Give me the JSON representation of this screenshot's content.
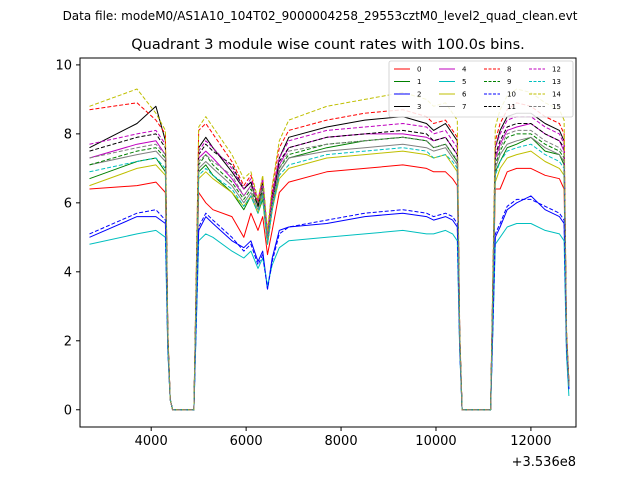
{
  "header": {
    "suptitle": "Data file: modeM0/AS1A10_104T02_9000004258_29553cztM0_level2_quad_clean.evt"
  },
  "chart_data": {
    "type": "line",
    "title": "Quadrant 3 module wise count rates with 100.0s bins.",
    "xlabel": "",
    "ylabel": "",
    "offset_label": "+3.536e8",
    "xlim": [
      2500,
      12950
    ],
    "ylim": [
      -0.5,
      10.2
    ],
    "xticks": [
      4000,
      6000,
      8000,
      10000,
      12000
    ],
    "yticks": [
      0,
      2,
      4,
      6,
      8,
      10
    ],
    "legend_position": "top-right",
    "x": [
      2700,
      3700,
      4100,
      4300,
      4350,
      4400,
      4450,
      4850,
      4900,
      5000,
      5150,
      5300,
      5700,
      5950,
      6100,
      6250,
      6350,
      6450,
      6550,
      6700,
      6900,
      7700,
      8500,
      9300,
      9800,
      9950,
      10200,
      10350,
      10450,
      10500,
      10550,
      11100,
      11150,
      11250,
      11350,
      11500,
      11700,
      12000,
      12300,
      12600,
      12700,
      12750,
      12800
    ],
    "series": [
      {
        "name": "0",
        "color": "#ff0000",
        "dash": "solid",
        "values": [
          6.4,
          6.5,
          6.6,
          6.3,
          2.0,
          0.3,
          0.0,
          0.0,
          0.0,
          6.3,
          6.0,
          5.8,
          5.6,
          5.0,
          5.7,
          5.2,
          5.6,
          4.5,
          5.2,
          6.3,
          6.6,
          6.9,
          7.0,
          7.1,
          7.0,
          6.9,
          6.9,
          6.7,
          6.5,
          2.0,
          0.0,
          0.0,
          0.0,
          6.4,
          6.4,
          6.9,
          7.0,
          7.0,
          6.8,
          6.7,
          6.4,
          2.0,
          0.7
        ]
      },
      {
        "name": "1",
        "color": "#008000",
        "dash": "solid",
        "values": [
          6.7,
          7.2,
          7.3,
          6.9,
          2.0,
          0.3,
          0.0,
          0.0,
          0.0,
          6.9,
          7.1,
          6.8,
          6.3,
          5.8,
          6.2,
          5.7,
          6.1,
          4.8,
          5.8,
          6.9,
          7.3,
          7.6,
          7.8,
          7.9,
          7.8,
          7.6,
          7.7,
          7.4,
          7.2,
          2.0,
          0.0,
          0.0,
          0.0,
          6.9,
          7.2,
          7.6,
          7.7,
          7.9,
          7.5,
          7.4,
          7.1,
          2.0,
          0.7
        ]
      },
      {
        "name": "2",
        "color": "#0000ff",
        "dash": "solid",
        "values": [
          5.0,
          5.6,
          5.6,
          5.4,
          1.8,
          0.3,
          0.0,
          0.0,
          0.0,
          5.2,
          5.6,
          5.4,
          4.9,
          4.7,
          4.9,
          4.3,
          4.6,
          3.5,
          4.4,
          5.2,
          5.3,
          5.4,
          5.6,
          5.7,
          5.6,
          5.5,
          5.6,
          5.5,
          5.3,
          1.8,
          0.0,
          0.0,
          0.0,
          5.0,
          5.3,
          5.8,
          6.0,
          6.2,
          5.8,
          5.6,
          5.4,
          1.8,
          0.6
        ]
      },
      {
        "name": "3",
        "color": "#000000",
        "dash": "solid",
        "values": [
          7.6,
          8.3,
          8.8,
          7.8,
          2.2,
          0.3,
          0.0,
          0.0,
          0.0,
          7.6,
          7.9,
          7.6,
          6.9,
          6.4,
          6.6,
          5.9,
          6.6,
          5.0,
          6.2,
          7.3,
          7.9,
          8.2,
          8.4,
          8.5,
          8.3,
          8.1,
          8.3,
          8.0,
          7.8,
          2.2,
          0.0,
          0.0,
          0.0,
          7.6,
          8.1,
          8.5,
          8.6,
          8.6,
          8.3,
          8.1,
          7.8,
          2.2,
          0.8
        ]
      },
      {
        "name": "4",
        "color": "#bf00bf",
        "dash": "solid",
        "values": [
          7.3,
          7.7,
          7.8,
          7.4,
          2.1,
          0.3,
          0.0,
          0.0,
          0.0,
          7.3,
          7.5,
          7.3,
          6.7,
          6.2,
          6.5,
          6.0,
          6.5,
          5.0,
          6.1,
          7.1,
          7.6,
          7.9,
          8.0,
          8.0,
          7.9,
          7.8,
          7.9,
          7.6,
          7.4,
          2.1,
          0.0,
          0.0,
          0.0,
          7.3,
          7.7,
          8.1,
          8.2,
          8.3,
          8.0,
          7.8,
          7.5,
          2.1,
          0.7
        ]
      },
      {
        "name": "5",
        "color": "#00bfbf",
        "dash": "solid",
        "values": [
          4.8,
          5.1,
          5.2,
          5.0,
          1.7,
          0.3,
          0.0,
          0.0,
          0.0,
          4.9,
          5.1,
          5.0,
          4.6,
          4.4,
          4.6,
          4.1,
          4.4,
          3.6,
          4.2,
          4.7,
          4.9,
          5.0,
          5.1,
          5.2,
          5.1,
          5.1,
          5.2,
          5.1,
          4.9,
          1.7,
          0.0,
          0.0,
          0.0,
          4.8,
          5.0,
          5.3,
          5.4,
          5.4,
          5.2,
          5.1,
          4.9,
          1.6,
          0.4
        ]
      },
      {
        "name": "6",
        "color": "#bfbf00",
        "dash": "solid",
        "values": [
          6.5,
          7.0,
          7.1,
          6.8,
          2.0,
          0.3,
          0.0,
          0.0,
          0.0,
          6.7,
          6.9,
          6.7,
          6.3,
          5.9,
          6.2,
          5.7,
          6.2,
          4.8,
          5.8,
          6.7,
          7.0,
          7.3,
          7.4,
          7.5,
          7.4,
          7.3,
          7.4,
          7.1,
          6.9,
          2.0,
          0.0,
          0.0,
          0.0,
          6.6,
          7.0,
          7.3,
          7.4,
          7.5,
          7.2,
          7.0,
          6.8,
          2.0,
          0.7
        ]
      },
      {
        "name": "7",
        "color": "#808080",
        "dash": "solid",
        "values": [
          7.1,
          7.4,
          7.5,
          7.2,
          2.1,
          0.3,
          0.0,
          0.0,
          0.0,
          7.0,
          7.2,
          7.0,
          6.5,
          6.0,
          6.3,
          5.8,
          6.3,
          4.9,
          5.9,
          6.9,
          7.3,
          7.5,
          7.6,
          7.7,
          7.6,
          7.5,
          7.6,
          7.3,
          7.1,
          2.1,
          0.0,
          0.0,
          0.0,
          7.0,
          7.4,
          7.7,
          7.8,
          7.9,
          7.6,
          7.4,
          7.2,
          2.1,
          0.7
        ]
      },
      {
        "name": "8",
        "color": "#ff0000",
        "dash": "dashed",
        "values": [
          8.7,
          8.9,
          8.4,
          8.0,
          2.3,
          0.3,
          0.0,
          0.0,
          0.0,
          8.1,
          8.3,
          8.0,
          7.2,
          6.5,
          6.8,
          6.0,
          6.7,
          5.1,
          6.4,
          7.6,
          8.1,
          8.4,
          8.6,
          8.7,
          8.5,
          8.3,
          8.4,
          8.1,
          7.9,
          2.3,
          0.0,
          0.0,
          0.0,
          7.8,
          8.3,
          8.7,
          8.9,
          8.8,
          8.5,
          8.3,
          8.0,
          2.3,
          0.8
        ]
      },
      {
        "name": "9",
        "color": "#008000",
        "dash": "dashed",
        "values": [
          7.1,
          7.5,
          7.6,
          7.3,
          2.1,
          0.3,
          0.0,
          0.0,
          0.0,
          7.1,
          7.4,
          7.1,
          6.6,
          6.1,
          6.4,
          5.9,
          6.4,
          5.0,
          6.0,
          7.0,
          7.4,
          7.7,
          7.8,
          7.9,
          7.8,
          7.6,
          7.7,
          7.4,
          7.2,
          2.1,
          0.0,
          0.0,
          0.0,
          7.1,
          7.5,
          7.9,
          8.0,
          8.0,
          7.7,
          7.5,
          7.3,
          2.1,
          0.7
        ]
      },
      {
        "name": "10",
        "color": "#0000ff",
        "dash": "dashed",
        "values": [
          5.1,
          5.7,
          5.8,
          5.5,
          1.8,
          0.3,
          0.0,
          0.0,
          0.0,
          5.3,
          5.7,
          5.5,
          5.0,
          4.6,
          4.8,
          4.2,
          4.5,
          3.5,
          4.3,
          5.1,
          5.3,
          5.5,
          5.7,
          5.8,
          5.7,
          5.6,
          5.7,
          5.6,
          5.4,
          1.8,
          0.0,
          0.0,
          0.0,
          5.1,
          5.4,
          5.9,
          6.1,
          6.1,
          5.9,
          5.7,
          5.5,
          1.8,
          0.6
        ]
      },
      {
        "name": "11",
        "color": "#000000",
        "dash": "dashed",
        "values": [
          7.5,
          7.9,
          8.0,
          7.6,
          2.2,
          0.3,
          0.0,
          0.0,
          0.0,
          7.4,
          7.7,
          7.5,
          7.1,
          6.4,
          6.6,
          5.9,
          6.5,
          5.0,
          6.1,
          7.2,
          7.6,
          7.9,
          8.0,
          8.1,
          8.0,
          7.8,
          7.9,
          7.6,
          7.4,
          2.2,
          0.0,
          0.0,
          0.0,
          7.4,
          7.8,
          8.2,
          8.3,
          8.3,
          8.0,
          7.8,
          7.6,
          2.2,
          0.8
        ]
      },
      {
        "name": "12",
        "color": "#bf00bf",
        "dash": "dashed",
        "values": [
          7.7,
          8.0,
          8.1,
          7.7,
          2.2,
          0.3,
          0.0,
          0.0,
          0.0,
          7.5,
          7.8,
          7.6,
          7.0,
          6.4,
          6.7,
          6.1,
          6.7,
          5.1,
          6.2,
          7.3,
          7.8,
          8.1,
          8.2,
          8.3,
          8.2,
          8.0,
          8.1,
          7.8,
          7.6,
          2.2,
          0.0,
          0.0,
          0.0,
          7.6,
          8.0,
          8.4,
          8.5,
          8.5,
          8.2,
          8.0,
          7.7,
          2.2,
          0.8
        ]
      },
      {
        "name": "13",
        "color": "#00bfbf",
        "dash": "dashed",
        "values": [
          6.9,
          7.2,
          7.3,
          7.0,
          2.0,
          0.3,
          0.0,
          0.0,
          0.0,
          6.8,
          7.0,
          6.8,
          6.4,
          5.9,
          6.2,
          5.7,
          6.2,
          4.8,
          5.8,
          6.8,
          7.1,
          7.4,
          7.5,
          7.6,
          7.5,
          7.3,
          7.4,
          7.2,
          7.0,
          2.0,
          0.0,
          0.0,
          0.0,
          6.8,
          7.2,
          7.5,
          7.6,
          7.7,
          7.4,
          7.2,
          7.0,
          2.0,
          0.7
        ]
      },
      {
        "name": "14",
        "color": "#bfbf00",
        "dash": "dashed",
        "values": [
          8.8,
          9.3,
          8.6,
          8.1,
          2.3,
          0.3,
          0.0,
          0.0,
          0.0,
          8.2,
          8.5,
          8.2,
          7.4,
          6.7,
          6.9,
          6.1,
          6.8,
          5.2,
          6.5,
          7.8,
          8.4,
          8.8,
          9.0,
          9.2,
          9.0,
          8.8,
          8.9,
          8.6,
          8.4,
          2.3,
          0.0,
          0.0,
          0.0,
          8.2,
          8.7,
          9.1,
          9.3,
          9.2,
          8.9,
          8.7,
          8.4,
          2.4,
          0.8
        ]
      },
      {
        "name": "15",
        "color": "#808080",
        "dash": "dashed",
        "values": [
          7.3,
          7.6,
          7.7,
          7.4,
          2.1,
          0.3,
          0.0,
          0.0,
          0.0,
          7.2,
          7.4,
          7.2,
          6.8,
          6.2,
          6.5,
          6.0,
          6.5,
          5.0,
          6.0,
          7.0,
          7.5,
          7.7,
          7.8,
          7.9,
          7.8,
          7.6,
          7.7,
          7.4,
          7.3,
          2.1,
          0.0,
          0.0,
          0.0,
          7.2,
          7.6,
          8.0,
          8.1,
          8.1,
          7.8,
          7.6,
          7.4,
          2.1,
          0.7
        ]
      }
    ]
  }
}
